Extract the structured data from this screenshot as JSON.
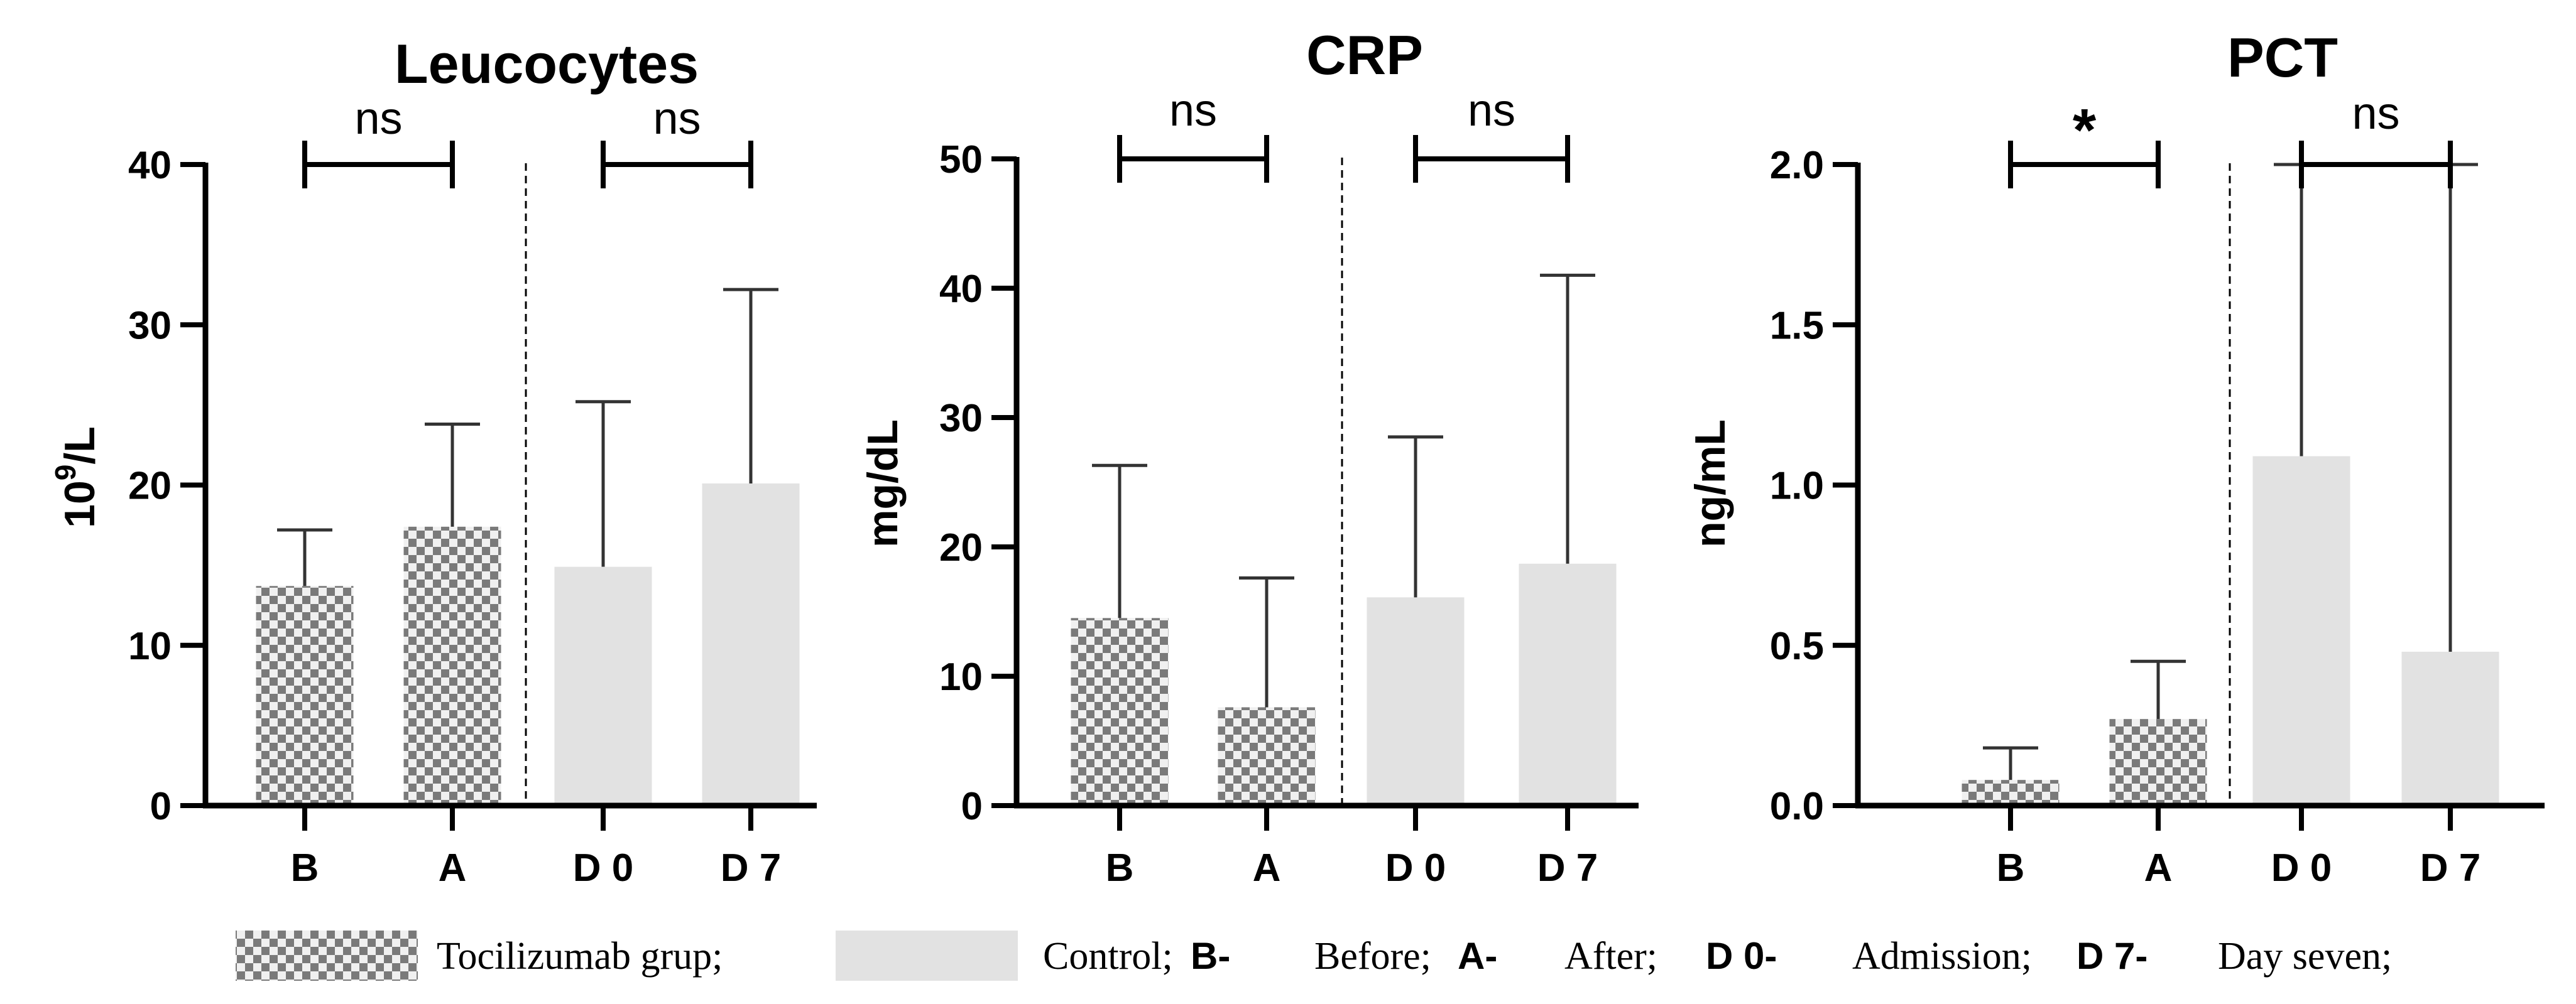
{
  "chart_data": [
    {
      "type": "bar",
      "title": "Leucocytes",
      "ylabel_base": "10",
      "ylabel_sup": "9",
      "ylabel_unit": "/L",
      "ylim": [
        0,
        40
      ],
      "yticks": [
        0,
        10,
        20,
        30,
        40
      ],
      "ytick_labels": [
        "0",
        "10",
        "20",
        "30",
        "40"
      ],
      "categories": [
        "B",
        "A",
        "D 0",
        "D 7"
      ],
      "groups": [
        "tocilizumab",
        "tocilizumab",
        "control",
        "control"
      ],
      "values": [
        13.7,
        17.4,
        14.9,
        20.1
      ],
      "error_upper": [
        17.2,
        23.8,
        25.2,
        32.2
      ],
      "comparisons": [
        {
          "from": 0,
          "to": 1,
          "label": "ns"
        },
        {
          "from": 2,
          "to": 3,
          "label": "ns"
        }
      ]
    },
    {
      "type": "bar",
      "title": "CRP",
      "ylabel": "mg/dL",
      "ylim": [
        0,
        50
      ],
      "yticks": [
        0,
        10,
        20,
        30,
        40,
        50
      ],
      "ytick_labels": [
        "0",
        "10",
        "20",
        "30",
        "40",
        "50"
      ],
      "categories": [
        "B",
        "A",
        "D 0",
        "D 7"
      ],
      "groups": [
        "tocilizumab",
        "tocilizumab",
        "control",
        "control"
      ],
      "values": [
        14.5,
        7.6,
        16.1,
        18.7
      ],
      "error_upper": [
        26.3,
        17.6,
        28.5,
        41.0
      ],
      "comparisons": [
        {
          "from": 0,
          "to": 1,
          "label": "ns"
        },
        {
          "from": 2,
          "to": 3,
          "label": "ns"
        }
      ]
    },
    {
      "type": "bar",
      "title": "PCT",
      "ylabel": "ng/mL",
      "ylim": [
        0,
        2.0
      ],
      "yticks": [
        0,
        0.5,
        1.0,
        1.5,
        2.0
      ],
      "ytick_labels": [
        "0.0",
        "0.5",
        "1.0",
        "1.5",
        "2.0"
      ],
      "categories": [
        "B",
        "A",
        "D 0",
        "D 7"
      ],
      "groups": [
        "tocilizumab",
        "tocilizumab",
        "control",
        "control"
      ],
      "values": [
        0.08,
        0.27,
        1.09,
        0.48
      ],
      "error_upper": [
        0.18,
        0.45,
        2.0,
        2.0
      ],
      "comparisons": [
        {
          "from": 0,
          "to": 1,
          "label": "*"
        },
        {
          "from": 2,
          "to": 3,
          "label": "ns"
        }
      ]
    }
  ],
  "legend": {
    "tocilizumab_label": "Tocilizumab grup;",
    "control_label": "Control;",
    "b_key": "B-",
    "b_label": "Before;",
    "a_key": "A-",
    "a_label": "After;",
    "d0_key": "D 0-",
    "d0_label": "Admission;",
    "d7_key": "D 7-",
    "d7_label": "Day seven;"
  },
  "colors": {
    "control_fill": "#e2e2e2",
    "check_dark": "#7a7a7a",
    "check_light": "#f0f0f0",
    "axis": "#000000"
  }
}
